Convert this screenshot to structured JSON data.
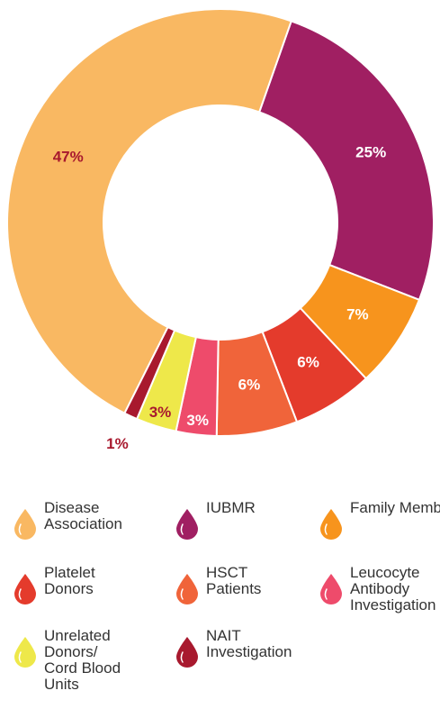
{
  "chart_data": {
    "type": "donut",
    "categories": [
      "IUBMR",
      "Family Members",
      "Platelet Donors",
      "HSCT Patients",
      "Leucocyte Antibody Investigation",
      "Unrelated Donors/ Cord Blood Units",
      "NAIT Investigation",
      "Disease Association"
    ],
    "values": [
      25,
      7,
      6,
      6,
      3,
      3,
      1,
      47
    ],
    "value_labels": [
      "25%",
      "7%",
      "6%",
      "6%",
      "3%",
      "3%",
      "1%",
      "47%"
    ],
    "colors": [
      "#a01f62",
      "#f7941d",
      "#e43b2c",
      "#f0643a",
      "#ee4b6b",
      "#eee84a",
      "#a8192e",
      "#f9b862"
    ],
    "label_colors": [
      "#ffffff",
      "#ffffff",
      "#ffffff",
      "#ffffff",
      "#ffffff",
      "#a8192e",
      "#a8192e",
      "#a8192e"
    ],
    "legend_order": [
      7,
      0,
      1,
      2,
      3,
      4,
      5,
      6
    ]
  }
}
